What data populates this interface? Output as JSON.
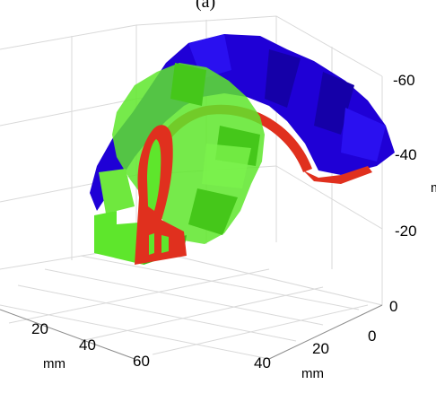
{
  "chart_data": {
    "type": "3d-surface",
    "panel_label": "(a)",
    "z_ticks": [
      "-60",
      "-40",
      "-20",
      "0"
    ],
    "x_ticks": [
      "20",
      "40",
      "60"
    ],
    "y_ticks": [
      "0",
      "20",
      "40"
    ],
    "x_unit": "mm",
    "y_unit": "mm",
    "z_unit": "m",
    "colors": {
      "blue": "#1f00d6",
      "green": "#5ee62c",
      "red": "#e0301e",
      "grid": "#d9d9d9"
    }
  }
}
